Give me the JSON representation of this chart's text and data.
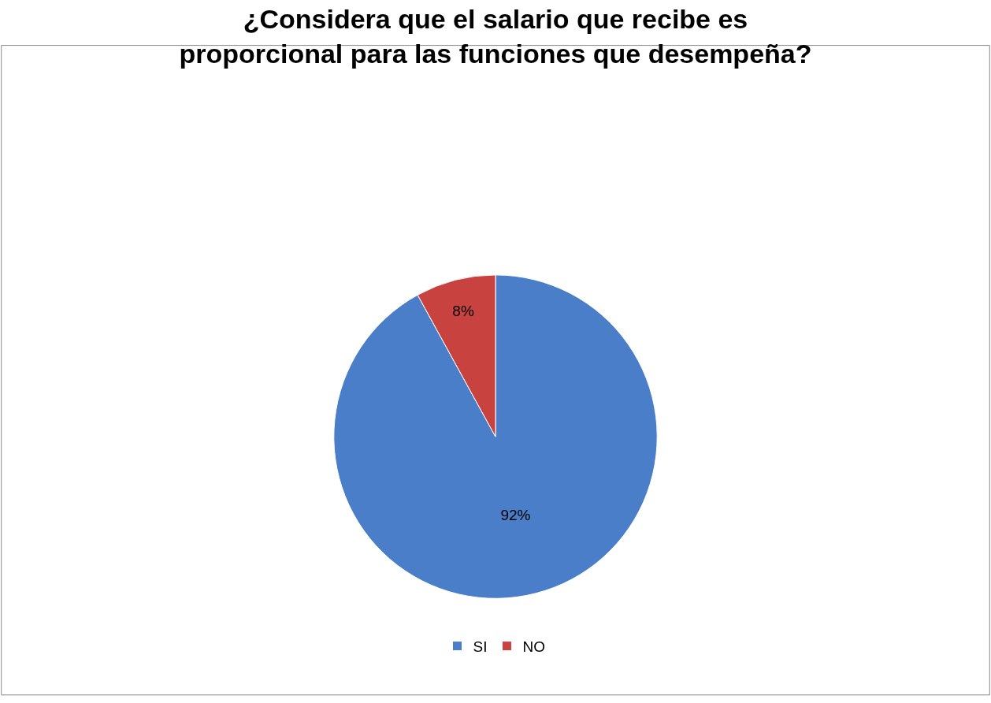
{
  "chart_data": {
    "type": "pie",
    "title": "¿Considera que el salario que recibe es\nproporcional para las funciones que desempeña?",
    "categories": [
      "SI",
      "NO"
    ],
    "values": [
      92,
      8
    ],
    "colors": [
      "#4a7ec8",
      "#c8423f"
    ],
    "value_labels": [
      "92%",
      "8%"
    ],
    "legend": "bottom"
  }
}
